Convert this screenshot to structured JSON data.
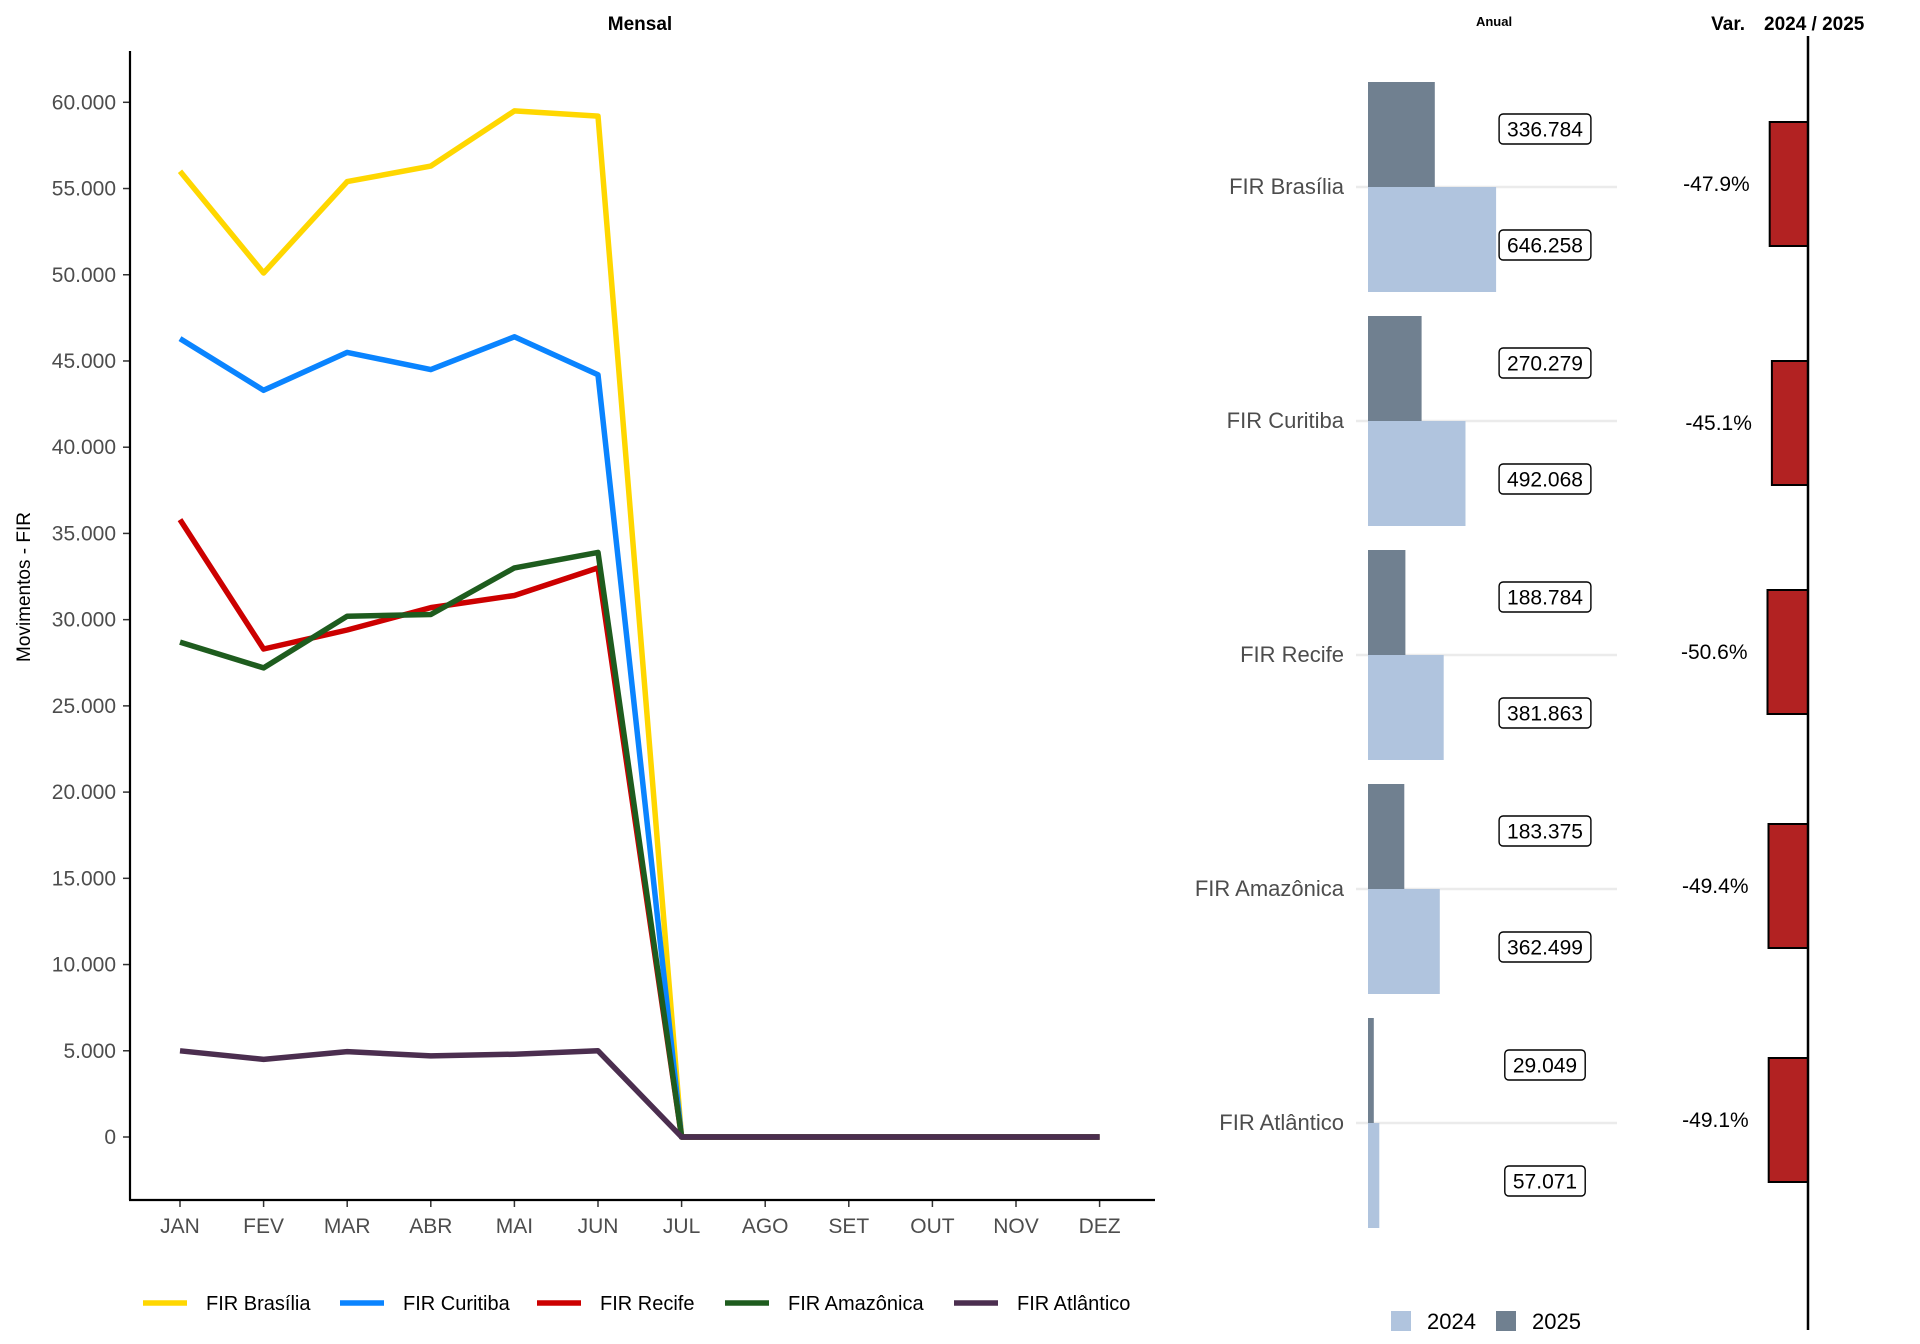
{
  "chart_data": [
    {
      "type": "line",
      "title": "Mensal",
      "ylabel": "Movimentos - FIR",
      "xlabel": "",
      "categories": [
        "JAN",
        "FEV",
        "MAR",
        "ABR",
        "MAI",
        "JUN",
        "JUL",
        "AGO",
        "SET",
        "OUT",
        "NOV",
        "DEZ"
      ],
      "ylim": [
        -3000,
        63000
      ],
      "yticks": [
        0,
        5000,
        10000,
        15000,
        20000,
        25000,
        30000,
        35000,
        40000,
        45000,
        50000,
        55000,
        60000
      ],
      "ytick_labels": [
        "0",
        "5.000",
        "10.000",
        "15.000",
        "20.000",
        "25.000",
        "30.000",
        "35.000",
        "40.000",
        "45.000",
        "50.000",
        "55.000",
        "60.000"
      ],
      "legend": "bottom",
      "grid": false,
      "series": [
        {
          "name": "FIR Brasília",
          "color": "#FFD700",
          "values": [
            56000,
            50100,
            55400,
            56300,
            59500,
            59200,
            0,
            0,
            0,
            0,
            0,
            0
          ]
        },
        {
          "name": "FIR Curitiba",
          "color": "#0A84FF",
          "values": [
            46300,
            43300,
            45500,
            44500,
            46400,
            44200,
            0,
            0,
            0,
            0,
            0,
            0
          ]
        },
        {
          "name": "FIR Recife",
          "color": "#CC0000",
          "values": [
            35800,
            28300,
            29400,
            30700,
            31400,
            33000,
            0,
            0,
            0,
            0,
            0,
            0
          ]
        },
        {
          "name": "FIR Amazônica",
          "color": "#1E5C1E",
          "values": [
            28700,
            27200,
            30200,
            30300,
            33000,
            33900,
            0,
            0,
            0,
            0,
            0,
            0
          ]
        },
        {
          "name": "FIR Atlântico",
          "color": "#4B2E4F",
          "values": [
            5000,
            4500,
            4950,
            4700,
            4800,
            5000,
            0,
            0,
            0,
            0,
            0,
            0
          ]
        }
      ]
    },
    {
      "type": "bar",
      "orientation": "horizontal",
      "title": "Anual",
      "categories": [
        "FIR Brasília",
        "FIR Curitiba",
        "FIR Recife",
        "FIR Amazônica",
        "FIR Atlântico"
      ],
      "xlim": [
        0,
        1300000
      ],
      "legend": "bottom",
      "series": [
        {
          "name": "2024",
          "color": "#B0C4DE",
          "values": [
            646258,
            492068,
            381863,
            362499,
            57071
          ],
          "labels": [
            "646.258",
            "492.068",
            "381.863",
            "362.499",
            "57.071"
          ]
        },
        {
          "name": "2025",
          "color": "#708090",
          "values": [
            336784,
            270279,
            188784,
            183375,
            29049
          ],
          "labels": [
            "336.784",
            "270.279",
            "188.784",
            "183.375",
            "29.049"
          ]
        }
      ]
    },
    {
      "type": "bar",
      "orientation": "horizontal",
      "title_parts": [
        "Var.",
        "2024 / 2025"
      ],
      "categories": [
        "FIR Brasília",
        "FIR Curitiba",
        "FIR Recife",
        "FIR Amazônica",
        "FIR Atlântico"
      ],
      "values": [
        -47.9,
        -45.1,
        -50.6,
        -49.4,
        -49.1
      ],
      "labels": [
        "-47.9%",
        "-45.1%",
        "-50.6%",
        "-49.4%",
        "-49.1%"
      ],
      "color": "#B22222"
    }
  ]
}
